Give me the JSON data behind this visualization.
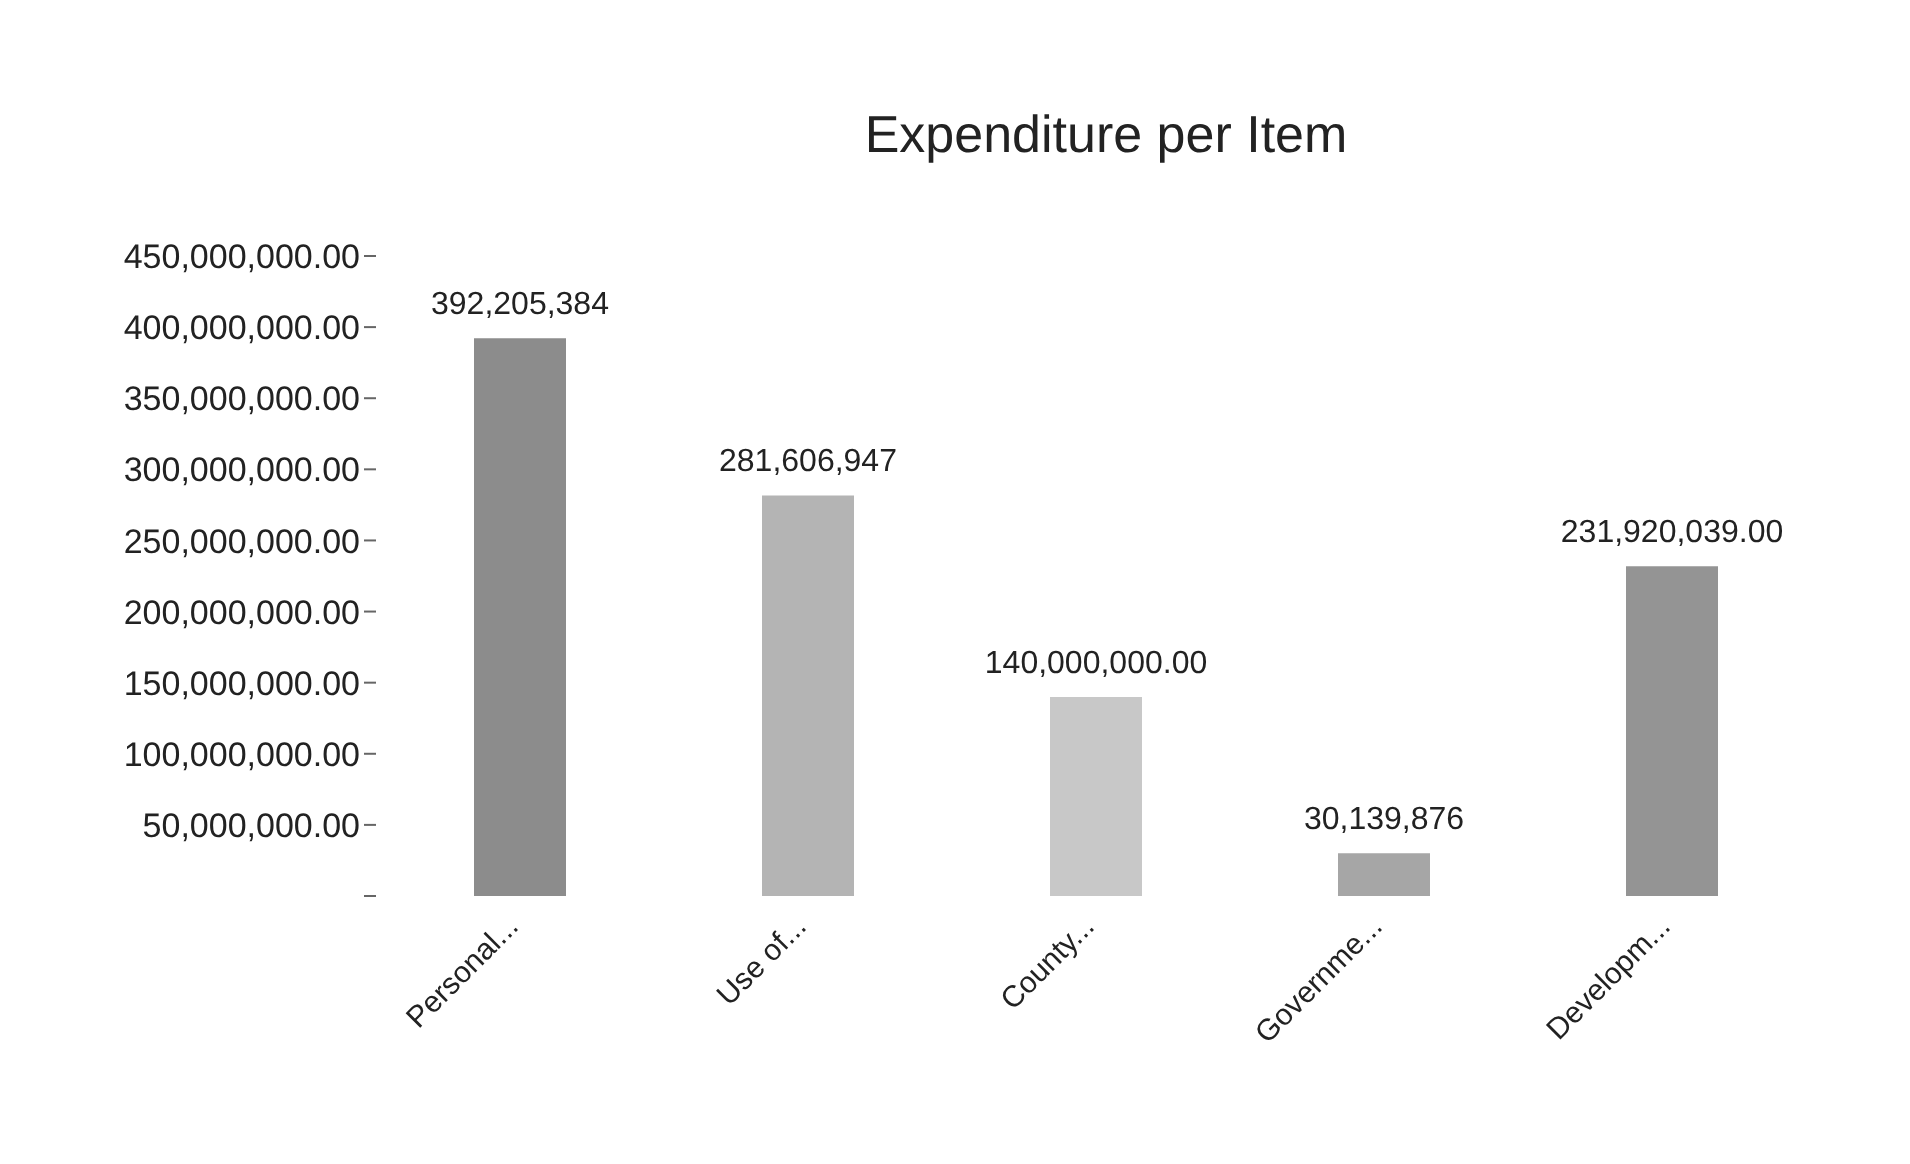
{
  "chart_data": {
    "type": "bar",
    "title": "Expenditure per Item",
    "categories": [
      "Personal...",
      "Use of...",
      "County...",
      "Governme...",
      "Developm..."
    ],
    "values": [
      392205384,
      281606947,
      140000000,
      30139876,
      231920039
    ],
    "colors": [
      "#8c8c8c",
      "#b4b4b4",
      "#c8c8c8",
      "#a6a6a6",
      "#949494"
    ],
    "value_labels": [
      "392,205,384",
      "281,606,947",
      "140,000,000.00",
      "30,139,876",
      "231,920,039.00"
    ],
    "ylim": [
      0,
      450000000
    ],
    "yticks": [
      {
        "value": 0,
        "label": null
      },
      {
        "value": 50000000,
        "label": "50,000,000.00"
      },
      {
        "value": 100000000,
        "label": "100,000,000.00"
      },
      {
        "value": 150000000,
        "label": "150,000,000.00"
      },
      {
        "value": 200000000,
        "label": "200,000,000.00"
      },
      {
        "value": 250000000,
        "label": "250,000,000.00"
      },
      {
        "value": 300000000,
        "label": "300,000,000.00"
      },
      {
        "value": 350000000,
        "label": "350,000,000.00"
      },
      {
        "value": 400000000,
        "label": "400,000,000.00"
      },
      {
        "value": 450000000,
        "label": "450,000,000.00"
      }
    ],
    "grid": false
  }
}
